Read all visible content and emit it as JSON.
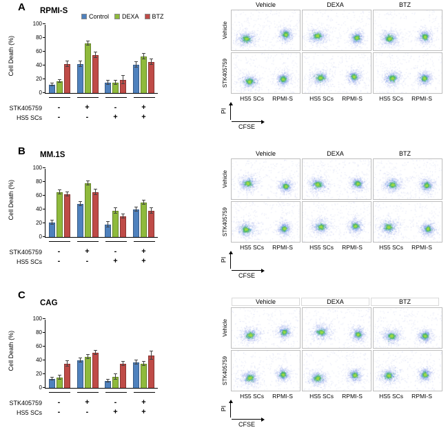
{
  "chart_common": {
    "ylabel": "Cell Death (%)",
    "yticks": [
      0,
      20,
      40,
      60,
      80,
      100
    ],
    "condition_rows": [
      {
        "label": "STK405759",
        "signs": [
          "-",
          "+",
          "-",
          "+"
        ]
      },
      {
        "label": "HS5 SCs",
        "signs": [
          "-",
          "-",
          "+",
          "+"
        ]
      }
    ]
  },
  "flow_common": {
    "col_headers": [
      "Vehicle",
      "DEXA",
      "BTZ"
    ],
    "row_labels": [
      "Vehicle",
      "STK405759"
    ],
    "x_axis": "CFSE",
    "y_axis": "PI"
  },
  "panels": [
    {
      "letter": "A",
      "flow_bottom_labels": [
        "HS5 SCs",
        "RPMI-S"
      ]
    },
    {
      "letter": "B",
      "flow_bottom_labels": [
        "HS5 SCs",
        "RPMI-S"
      ]
    },
    {
      "letter": "C",
      "flow_bottom_labels": [
        "HS5 SCs",
        "RPMI-S"
      ]
    }
  ],
  "chart_data": [
    {
      "type": "bar",
      "title": "RPMI-S",
      "ylabel": "Cell Death (%)",
      "ylim": [
        0,
        100
      ],
      "legend_position": "top",
      "grid": false,
      "categories": [
        "STK405759- / HS5 SCs-",
        "STK405759+ / HS5 SCs-",
        "STK405759- / HS5 SCs+",
        "STK405759+ / HS5 SCs+"
      ],
      "series": [
        {
          "name": "Control",
          "color": "#4f81bd",
          "values": [
            12,
            42,
            15,
            41
          ],
          "errors": [
            2,
            4,
            3,
            4
          ]
        },
        {
          "name": "DEXA",
          "color": "#8fba3c",
          "values": [
            17,
            72,
            15,
            53
          ],
          "errors": [
            2,
            3,
            3,
            4
          ]
        },
        {
          "name": "BTZ",
          "color": "#bf4b47",
          "values": [
            42,
            55,
            19,
            45
          ],
          "errors": [
            4,
            4,
            6,
            4
          ]
        }
      ]
    },
    {
      "type": "bar",
      "title": "MM.1S",
      "ylabel": "Cell Death (%)",
      "ylim": [
        0,
        100
      ],
      "grid": false,
      "categories": [
        "STK405759- / HS5 SCs-",
        "STK405759+ / HS5 SCs-",
        "STK405759- / HS5 SCs+",
        "STK405759+ / HS5 SCs+"
      ],
      "series": [
        {
          "name": "Control",
          "color": "#4f81bd",
          "values": [
            21,
            48,
            18,
            40
          ],
          "errors": [
            3,
            3,
            4,
            3
          ]
        },
        {
          "name": "DEXA",
          "color": "#8fba3c",
          "values": [
            65,
            78,
            38,
            50
          ],
          "errors": [
            3,
            3,
            4,
            3
          ]
        },
        {
          "name": "BTZ",
          "color": "#bf4b47",
          "values": [
            62,
            65,
            30,
            38
          ],
          "errors": [
            3,
            4,
            3,
            4
          ]
        }
      ]
    },
    {
      "type": "bar",
      "title": "CAG",
      "ylabel": "Cell Death (%)",
      "ylim": [
        0,
        100
      ],
      "grid": false,
      "categories": [
        "STK405759- / HS5 SCs-",
        "STK405759+ / HS5 SCs-",
        "STK405759- / HS5 SCs+",
        "STK405759+ / HS5 SCs+"
      ],
      "series": [
        {
          "name": "Control",
          "color": "#4f81bd",
          "values": [
            13,
            40,
            10,
            37
          ],
          "errors": [
            2,
            3,
            2,
            3
          ]
        },
        {
          "name": "DEXA",
          "color": "#8fba3c",
          "values": [
            15,
            45,
            16,
            35
          ],
          "errors": [
            3,
            3,
            4,
            3
          ]
        },
        {
          "name": "BTZ",
          "color": "#bf4b47",
          "values": [
            35,
            51,
            35,
            47
          ],
          "errors": [
            4,
            3,
            3,
            6
          ]
        }
      ]
    }
  ]
}
